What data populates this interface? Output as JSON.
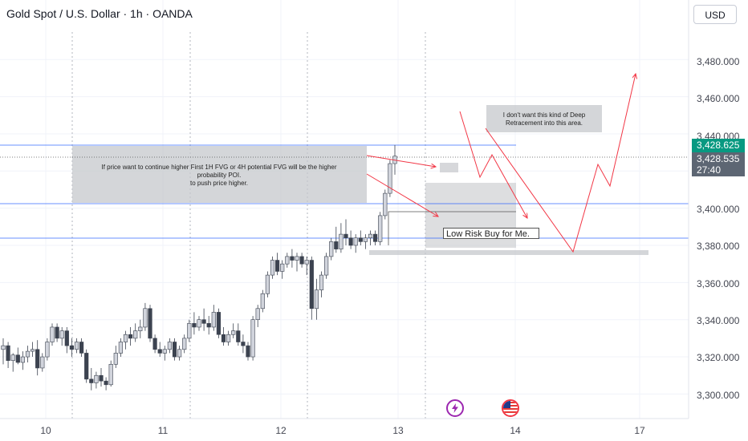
{
  "header": {
    "title": "Gold Spot / U.S. Dollar · 1h · OANDA",
    "currency_button": "USD"
  },
  "price_axis": {
    "ticks": [
      "3,480.000",
      "3,460.000",
      "3,440.000",
      "3,400.000",
      "3,380.000",
      "3,360.000",
      "3,340.000",
      "3,320.000",
      "3,300.000"
    ],
    "last_price_tag": "3,428.625",
    "last_price_tag_color": "#089981",
    "current_price_tag": "3,428.535",
    "countdown": "27:40",
    "current_price_tag_color": "#5d6673"
  },
  "time_axis": {
    "labels": [
      "10",
      "11",
      "12",
      "13",
      "14",
      "17"
    ]
  },
  "annotations": {
    "fvg_note_line1": "If price want to continue higher First 1H FVG or 4H potential FVG will be the higher",
    "fvg_note_line2": "probability POI.",
    "fvg_note_line3": "to push price higher.",
    "deep_note_line1": "I don't want this kind of Deep",
    "deep_note_line2": "Retracement into this area.",
    "low_risk_label": "Low Risk Buy for Me."
  },
  "events": {
    "lightning_icon": "lightning-icon",
    "us_flag_icon": "us-flag-icon"
  },
  "colors": {
    "bull_candle": "#d1d4dc",
    "bear_candle": "#3c4350",
    "arrow": "#f23645",
    "level_line": "#2962ff",
    "zone": "#c6c8cc"
  }
}
